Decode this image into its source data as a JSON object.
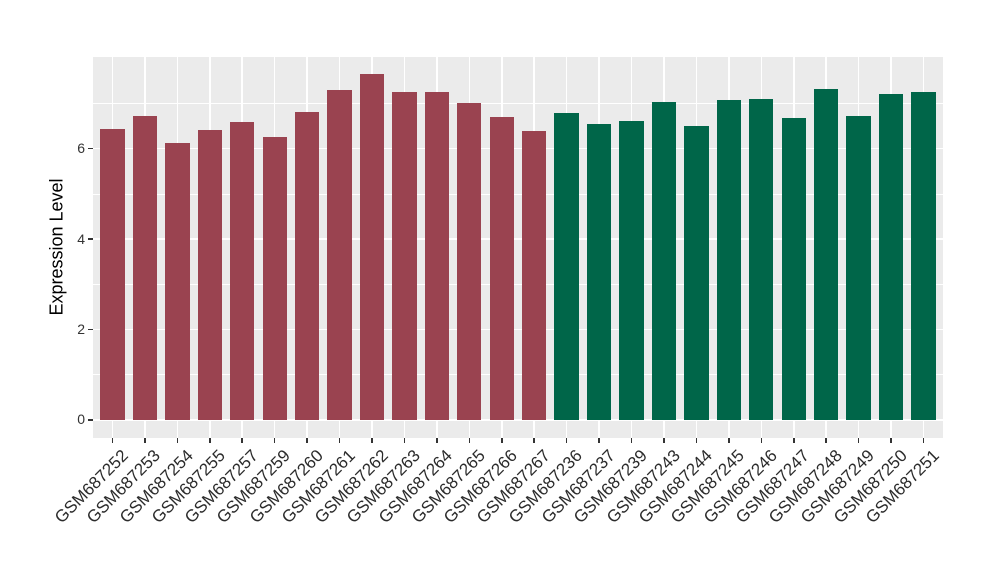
{
  "chart_data": {
    "type": "bar",
    "title": "",
    "xlabel": "",
    "ylabel": "Expression Level",
    "ylim": [
      -0.4,
      8.03
    ],
    "yticks": [
      0,
      2,
      4,
      6
    ],
    "yticks_minor": [
      1,
      3,
      5,
      7
    ],
    "grid": "white major+minor horizontal lines and vertical line at each category on grey panel",
    "legend": false,
    "bar_width_fraction": 0.75,
    "categories": [
      "GSM687252",
      "GSM687253",
      "GSM687254",
      "GSM687255",
      "GSM687257",
      "GSM687259",
      "GSM687260",
      "GSM687261",
      "GSM687262",
      "GSM687263",
      "GSM687264",
      "GSM687265",
      "GSM687266",
      "GSM687267",
      "GSM687236",
      "GSM687237",
      "GSM687239",
      "GSM687243",
      "GSM687244",
      "GSM687245",
      "GSM687246",
      "GSM687247",
      "GSM687248",
      "GSM687249",
      "GSM687250",
      "GSM687251"
    ],
    "values": [
      6.44,
      6.72,
      6.13,
      6.42,
      6.59,
      6.25,
      6.82,
      7.3,
      7.65,
      7.25,
      7.25,
      7.02,
      6.7,
      6.39,
      6.8,
      6.54,
      6.61,
      7.03,
      6.5,
      7.08,
      7.09,
      6.67,
      7.32,
      6.73,
      7.22,
      7.26
    ],
    "groups": [
      "red-group",
      "red-group",
      "red-group",
      "red-group",
      "red-group",
      "red-group",
      "red-group",
      "red-group",
      "red-group",
      "red-group",
      "red-group",
      "red-group",
      "red-group",
      "red-group",
      "green-group",
      "green-group",
      "green-group",
      "green-group",
      "green-group",
      "green-group",
      "green-group",
      "green-group",
      "green-group",
      "green-group",
      "green-group",
      "green-group"
    ],
    "group_colors": {
      "red-group": "#9A4350",
      "green-group": "#006649"
    }
  },
  "colors": {
    "background": "#FFFFFF",
    "panel_background": "#EBEBEB",
    "gridline": "#FFFFFF",
    "axis_text": "#333333",
    "x_label_text": "#2B2B2B",
    "axis_title": "#000000",
    "tick_mark": "#333333"
  }
}
